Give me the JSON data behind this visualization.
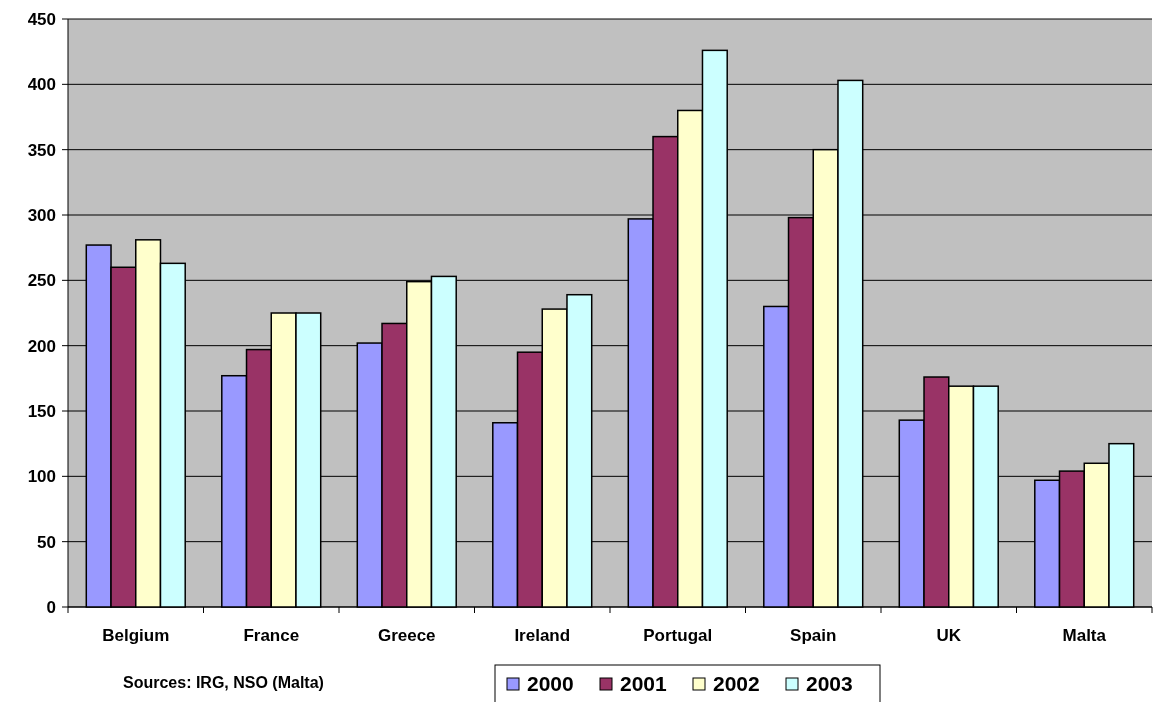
{
  "chart_data": {
    "type": "bar",
    "categories": [
      "Belgium",
      "France",
      "Greece",
      "Ireland",
      "Portugal",
      "Spain",
      "UK",
      "Malta"
    ],
    "series": [
      {
        "name": "2000",
        "color": "#9999ff",
        "values": [
          277,
          177,
          202,
          141,
          297,
          230,
          143,
          97
        ]
      },
      {
        "name": "2001",
        "color": "#993366",
        "values": [
          260,
          197,
          217,
          195,
          360,
          298,
          176,
          104
        ]
      },
      {
        "name": "2002",
        "color": "#ffffcc",
        "values": [
          281,
          225,
          249,
          228,
          380,
          350,
          169,
          110
        ]
      },
      {
        "name": "2003",
        "color": "#ccffff",
        "values": [
          263,
          225,
          253,
          239,
          426,
          403,
          169,
          125
        ]
      }
    ],
    "ylim": [
      0,
      450
    ],
    "yticks": [
      0,
      50,
      100,
      150,
      200,
      250,
      300,
      350,
      400,
      450
    ],
    "grid": "y",
    "legend": "bottom",
    "annotations": [
      "Sources: IRG, NSO (Malta)"
    ]
  }
}
